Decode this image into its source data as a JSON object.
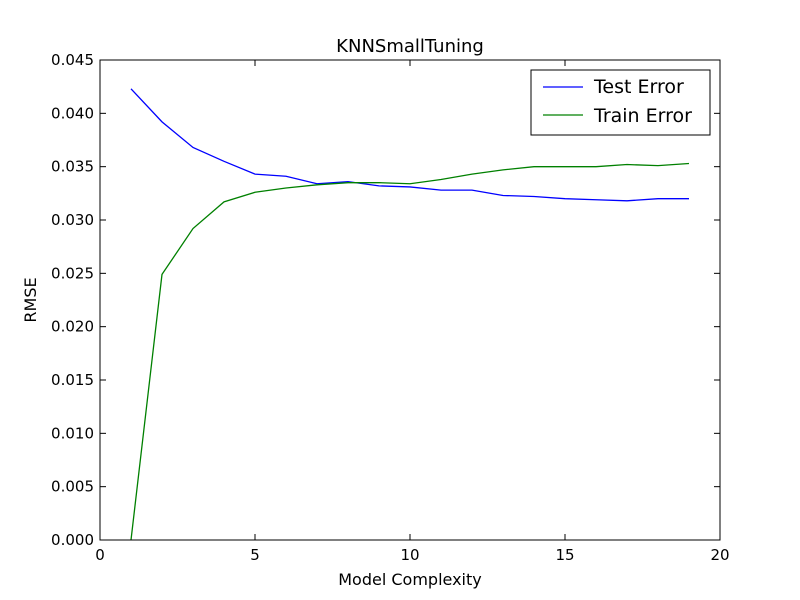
{
  "chart_data": {
    "type": "line",
    "title": "KNNSmallTuning",
    "xlabel": "Model Complexity",
    "ylabel": "RMSE",
    "xlim": [
      0,
      20
    ],
    "ylim": [
      0.0,
      0.045
    ],
    "xticks": [
      "0",
      "5",
      "10",
      "15",
      "20"
    ],
    "yticks": [
      "0.000",
      "0.005",
      "0.010",
      "0.015",
      "0.020",
      "0.025",
      "0.030",
      "0.035",
      "0.040",
      "0.045"
    ],
    "grid": false,
    "legend_position": "top-right",
    "x": [
      1,
      2,
      3,
      4,
      5,
      6,
      7,
      8,
      9,
      10,
      11,
      12,
      13,
      14,
      15,
      16,
      17,
      18,
      19
    ],
    "series": [
      {
        "name": "Test Error",
        "color": "#0000ff",
        "values": [
          0.0423,
          0.0392,
          0.0368,
          0.0355,
          0.0343,
          0.0341,
          0.0334,
          0.0336,
          0.0332,
          0.0331,
          0.0328,
          0.0328,
          0.0323,
          0.0322,
          0.032,
          0.0319,
          0.0318,
          0.032,
          0.032
        ]
      },
      {
        "name": "Train Error",
        "color": "#008000",
        "values": [
          0.0,
          0.0249,
          0.0292,
          0.0317,
          0.0326,
          0.033,
          0.0333,
          0.0335,
          0.0335,
          0.0334,
          0.0338,
          0.0343,
          0.0347,
          0.035,
          0.035,
          0.035,
          0.0352,
          0.0351,
          0.0353
        ]
      }
    ]
  }
}
